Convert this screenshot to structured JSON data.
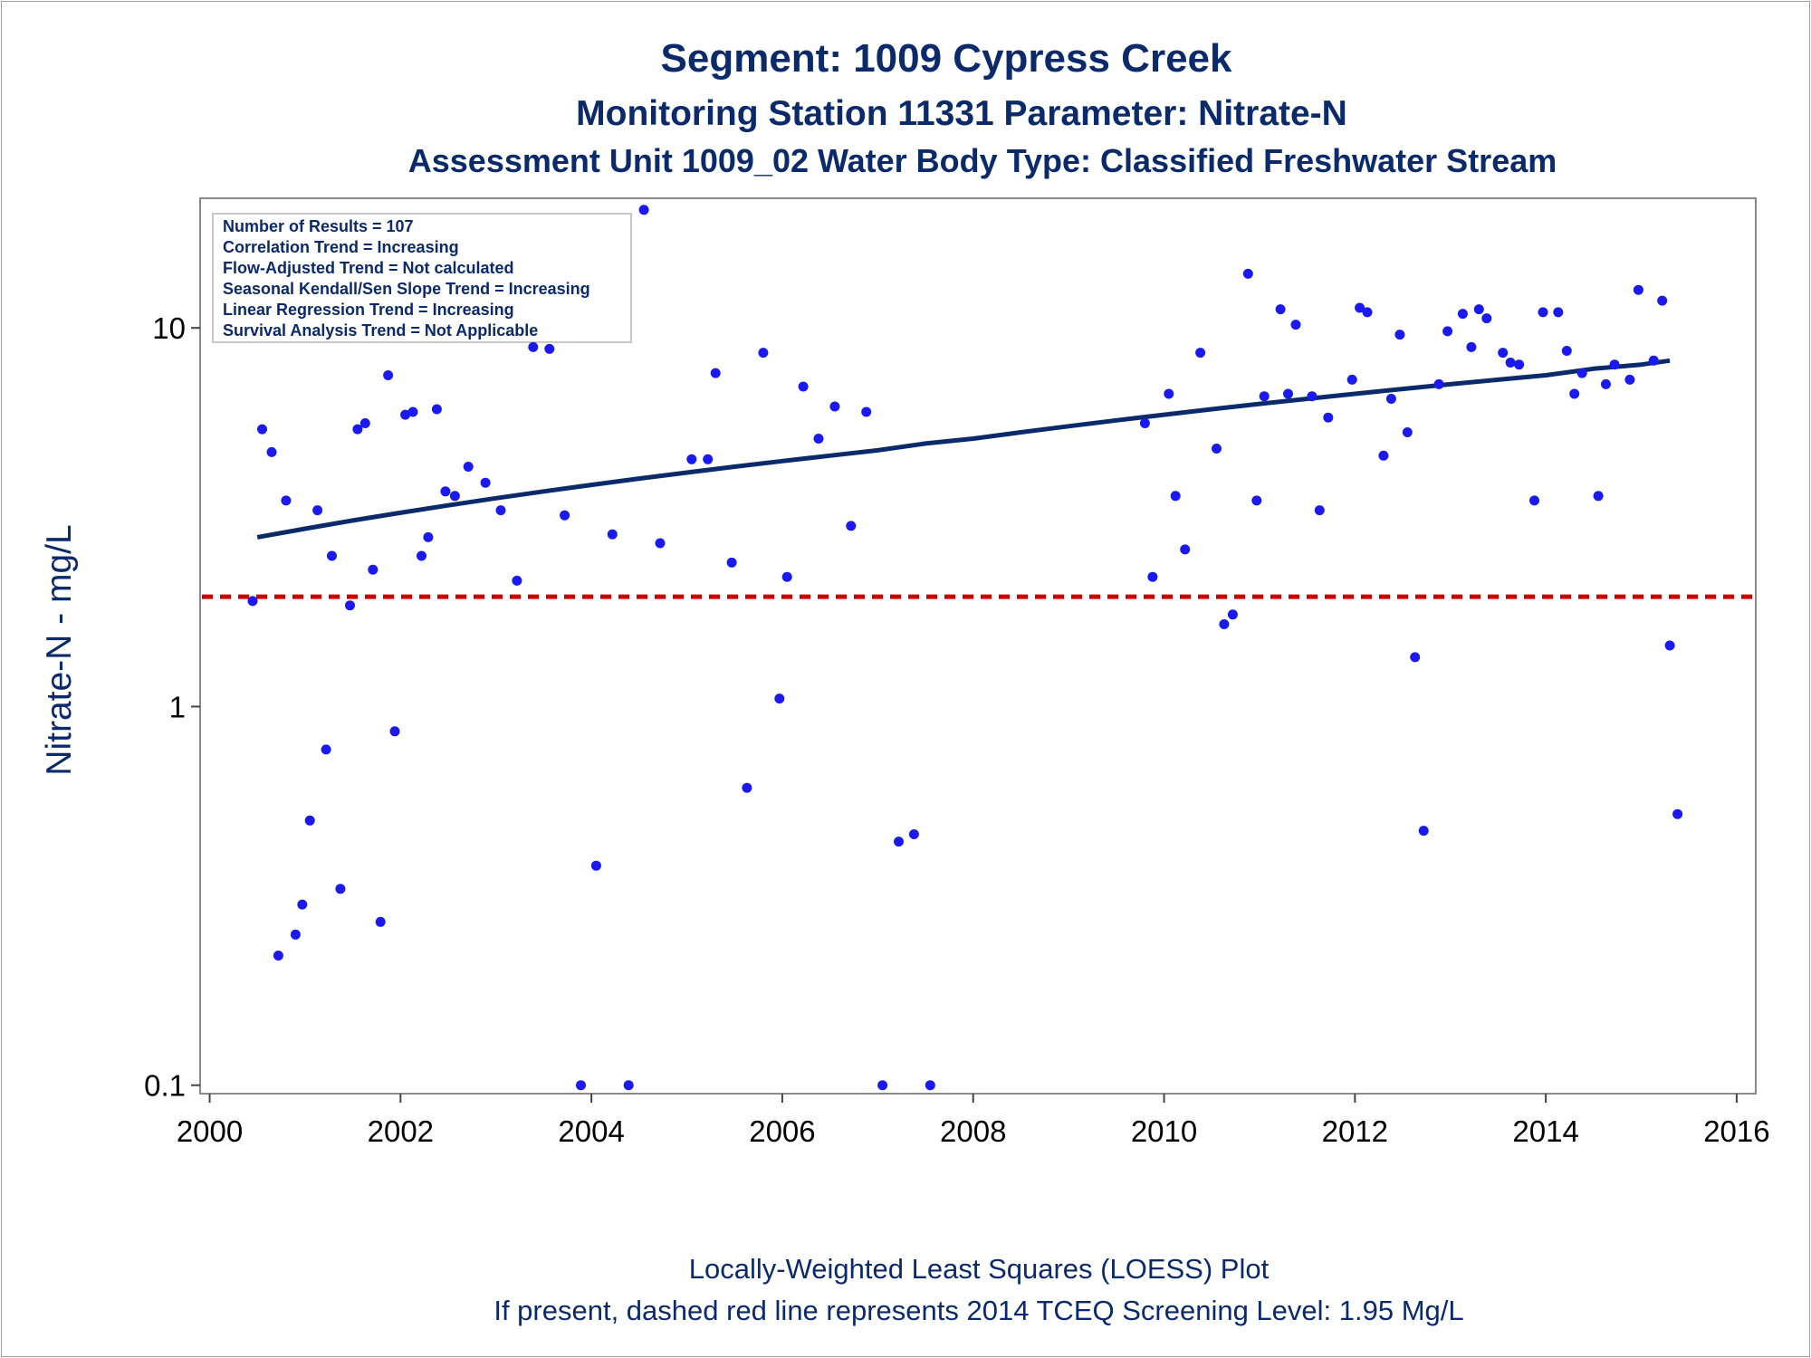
{
  "chart_data": {
    "type": "scatter",
    "title": "Segment: 1009  Cypress Creek",
    "subtitle": "Monitoring Station 11331 Parameter: Nitrate-N",
    "subtitle2": "Assessment Unit 1009_02   Water Body Type: Classified Freshwater Stream",
    "xlabel": "",
    "ylabel": "Nitrate-N - mg/L",
    "footnote1": "Locally-Weighted Least Squares (LOESS) Plot",
    "footnote2": "If present, dashed red line represents 2014 TCEQ Screening Level: 1.95 Mg/L",
    "x_scale": "linear",
    "y_scale": "log",
    "xlim": [
      1999.9,
      2016.2
    ],
    "ylim": [
      0.095,
      22
    ],
    "x_ticks": [
      2000,
      2002,
      2004,
      2006,
      2008,
      2010,
      2012,
      2014,
      2016
    ],
    "x_tick_labels": [
      "2000",
      "2002",
      "2004",
      "2006",
      "2008",
      "2010",
      "2012",
      "2014",
      "2016"
    ],
    "y_ticks": [
      0.1,
      1,
      10
    ],
    "y_tick_labels": [
      "0.1",
      "1",
      "10"
    ],
    "stats_box": {
      "position": "top-left",
      "lines": [
        "Number of Results = 107",
        "Correlation Trend = Increasing",
        "Flow-Adjusted Trend = Not calculated",
        "Seasonal Kendall/Sen Slope Trend = Increasing",
        "Linear Regression Trend = Increasing",
        "Survival Analysis Trend = Not Applicable"
      ]
    },
    "reference_line": {
      "y": 1.95,
      "style": "dashed",
      "color": "#cc0000"
    },
    "trend_line": {
      "name": "LOESS",
      "color": "#0b2a6b",
      "x": [
        2000.5,
        2001.0,
        2001.5,
        2002.0,
        2002.5,
        2003.0,
        2003.5,
        2004.0,
        2004.5,
        2005.0,
        2005.5,
        2006.0,
        2006.5,
        2007.0,
        2007.5,
        2008.0,
        2008.5,
        2009.0,
        2009.5,
        2010.0,
        2010.5,
        2011.0,
        2011.5,
        2012.0,
        2012.5,
        2013.0,
        2013.5,
        2014.0,
        2014.5,
        2015.0,
        2015.3
      ],
      "y": [
        2.8,
        2.95,
        3.1,
        3.25,
        3.4,
        3.55,
        3.7,
        3.85,
        4.0,
        4.15,
        4.3,
        4.45,
        4.6,
        4.75,
        4.95,
        5.1,
        5.3,
        5.5,
        5.7,
        5.9,
        6.1,
        6.3,
        6.5,
        6.7,
        6.9,
        7.1,
        7.3,
        7.5,
        7.8,
        8.0,
        8.2
      ]
    },
    "marker_color": "#1a1aee",
    "points": [
      {
        "x": 2000.45,
        "y": 1.9
      },
      {
        "x": 2000.55,
        "y": 5.4
      },
      {
        "x": 2000.65,
        "y": 4.7
      },
      {
        "x": 2000.72,
        "y": 0.22
      },
      {
        "x": 2000.8,
        "y": 3.5
      },
      {
        "x": 2000.9,
        "y": 0.25
      },
      {
        "x": 2000.97,
        "y": 0.3
      },
      {
        "x": 2001.05,
        "y": 0.5
      },
      {
        "x": 2001.13,
        "y": 3.3
      },
      {
        "x": 2001.22,
        "y": 0.77
      },
      {
        "x": 2001.28,
        "y": 2.5
      },
      {
        "x": 2001.37,
        "y": 0.33
      },
      {
        "x": 2001.47,
        "y": 1.85
      },
      {
        "x": 2001.55,
        "y": 5.4
      },
      {
        "x": 2001.63,
        "y": 5.6
      },
      {
        "x": 2001.71,
        "y": 2.3
      },
      {
        "x": 2001.79,
        "y": 0.27
      },
      {
        "x": 2001.87,
        "y": 7.5
      },
      {
        "x": 2001.94,
        "y": 0.86
      },
      {
        "x": 2002.05,
        "y": 5.9
      },
      {
        "x": 2002.13,
        "y": 6.0
      },
      {
        "x": 2002.22,
        "y": 2.5
      },
      {
        "x": 2002.29,
        "y": 2.8
      },
      {
        "x": 2002.38,
        "y": 6.1
      },
      {
        "x": 2002.47,
        "y": 3.7
      },
      {
        "x": 2002.57,
        "y": 3.6
      },
      {
        "x": 2002.71,
        "y": 4.3
      },
      {
        "x": 2002.89,
        "y": 3.9
      },
      {
        "x": 2003.05,
        "y": 3.3
      },
      {
        "x": 2003.22,
        "y": 2.15
      },
      {
        "x": 2003.39,
        "y": 8.9
      },
      {
        "x": 2003.56,
        "y": 8.8
      },
      {
        "x": 2003.72,
        "y": 3.2
      },
      {
        "x": 2003.89,
        "y": 0.1
      },
      {
        "x": 2004.05,
        "y": 0.38
      },
      {
        "x": 2004.22,
        "y": 2.85
      },
      {
        "x": 2004.39,
        "y": 0.1
      },
      {
        "x": 2004.55,
        "y": 20.5
      },
      {
        "x": 2004.72,
        "y": 2.7
      },
      {
        "x": 2005.05,
        "y": 4.5
      },
      {
        "x": 2005.22,
        "y": 4.5
      },
      {
        "x": 2005.3,
        "y": 7.6
      },
      {
        "x": 2005.47,
        "y": 2.4
      },
      {
        "x": 2005.63,
        "y": 0.61
      },
      {
        "x": 2005.8,
        "y": 8.6
      },
      {
        "x": 2005.97,
        "y": 1.05
      },
      {
        "x": 2006.05,
        "y": 2.2
      },
      {
        "x": 2006.22,
        "y": 7.0
      },
      {
        "x": 2006.38,
        "y": 5.1
      },
      {
        "x": 2006.55,
        "y": 6.2
      },
      {
        "x": 2006.72,
        "y": 3.0
      },
      {
        "x": 2006.88,
        "y": 6.0
      },
      {
        "x": 2007.05,
        "y": 0.1
      },
      {
        "x": 2007.22,
        "y": 0.44
      },
      {
        "x": 2007.38,
        "y": 0.46
      },
      {
        "x": 2007.55,
        "y": 0.1
      },
      {
        "x": 2009.8,
        "y": 5.6
      },
      {
        "x": 2009.88,
        "y": 2.2
      },
      {
        "x": 2010.05,
        "y": 6.7
      },
      {
        "x": 2010.12,
        "y": 3.6
      },
      {
        "x": 2010.22,
        "y": 2.6
      },
      {
        "x": 2010.38,
        "y": 8.6
      },
      {
        "x": 2010.55,
        "y": 4.8
      },
      {
        "x": 2010.63,
        "y": 1.65
      },
      {
        "x": 2010.72,
        "y": 1.75
      },
      {
        "x": 2010.88,
        "y": 13.9
      },
      {
        "x": 2010.97,
        "y": 3.5
      },
      {
        "x": 2011.05,
        "y": 6.6
      },
      {
        "x": 2011.22,
        "y": 11.2
      },
      {
        "x": 2011.3,
        "y": 6.7
      },
      {
        "x": 2011.38,
        "y": 10.2
      },
      {
        "x": 2011.55,
        "y": 6.6
      },
      {
        "x": 2011.63,
        "y": 3.3
      },
      {
        "x": 2011.72,
        "y": 5.8
      },
      {
        "x": 2011.97,
        "y": 7.3
      },
      {
        "x": 2012.05,
        "y": 11.3
      },
      {
        "x": 2012.13,
        "y": 11.0
      },
      {
        "x": 2012.3,
        "y": 4.6
      },
      {
        "x": 2012.38,
        "y": 6.5
      },
      {
        "x": 2012.47,
        "y": 9.6
      },
      {
        "x": 2012.55,
        "y": 5.3
      },
      {
        "x": 2012.63,
        "y": 1.35
      },
      {
        "x": 2012.72,
        "y": 0.47
      },
      {
        "x": 2012.88,
        "y": 7.1
      },
      {
        "x": 2012.97,
        "y": 9.8
      },
      {
        "x": 2013.13,
        "y": 10.9
      },
      {
        "x": 2013.22,
        "y": 8.9
      },
      {
        "x": 2013.3,
        "y": 11.2
      },
      {
        "x": 2013.38,
        "y": 10.6
      },
      {
        "x": 2013.55,
        "y": 8.6
      },
      {
        "x": 2013.63,
        "y": 8.1
      },
      {
        "x": 2013.72,
        "y": 8.0
      },
      {
        "x": 2013.88,
        "y": 3.5
      },
      {
        "x": 2013.97,
        "y": 11.0
      },
      {
        "x": 2014.13,
        "y": 11.0
      },
      {
        "x": 2014.22,
        "y": 8.7
      },
      {
        "x": 2014.3,
        "y": 6.7
      },
      {
        "x": 2014.38,
        "y": 7.6
      },
      {
        "x": 2014.55,
        "y": 3.6
      },
      {
        "x": 2014.63,
        "y": 7.1
      },
      {
        "x": 2014.72,
        "y": 8.0
      },
      {
        "x": 2014.88,
        "y": 7.3
      },
      {
        "x": 2014.97,
        "y": 12.6
      },
      {
        "x": 2015.13,
        "y": 8.2
      },
      {
        "x": 2015.22,
        "y": 11.8
      },
      {
        "x": 2015.3,
        "y": 1.45
      },
      {
        "x": 2015.38,
        "y": 0.52
      }
    ]
  }
}
